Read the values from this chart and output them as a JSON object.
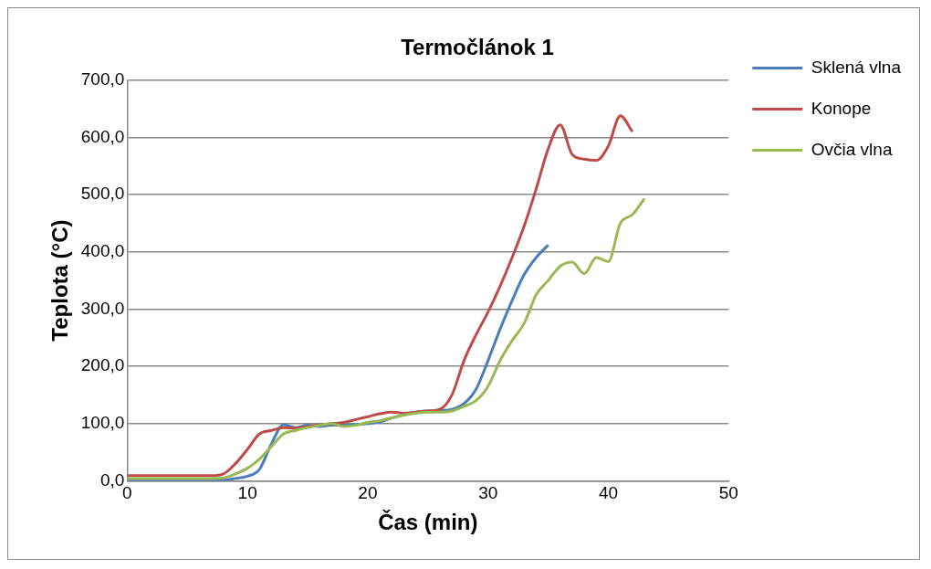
{
  "chart_data": {
    "type": "line",
    "title": "Termočlánok 1",
    "xlabel": "Čas (min)",
    "ylabel": "Teplota (°C)",
    "xlim": [
      0,
      50
    ],
    "xticks": [
      0,
      10,
      20,
      30,
      40,
      50
    ],
    "ylim": [
      0,
      700
    ],
    "yticks": [
      {
        "value": 0,
        "label": "0,0"
      },
      {
        "value": 100,
        "label": "100,0"
      },
      {
        "value": 200,
        "label": "200,0"
      },
      {
        "value": 300,
        "label": "300,0"
      },
      {
        "value": 400,
        "label": "400,0"
      },
      {
        "value": 500,
        "label": "500,0"
      },
      {
        "value": 600,
        "label": "600,0"
      },
      {
        "value": 700,
        "label": "700,0"
      }
    ],
    "grid": "y",
    "legend": "right",
    "marker": "none",
    "line_style": "solid",
    "series": [
      {
        "name": "Sklená vlna",
        "color": "#4a7ebb",
        "x": [
          0,
          1,
          2,
          3,
          4,
          5,
          6,
          7,
          8,
          9,
          10,
          11,
          12,
          13,
          14,
          15,
          16,
          17,
          18,
          19,
          20,
          21,
          22,
          23,
          24,
          25,
          26,
          27,
          28,
          29,
          30,
          31,
          32,
          33,
          34,
          35
        ],
        "values": [
          0,
          0,
          0,
          0,
          0,
          0,
          0,
          0,
          1,
          4,
          8,
          20,
          65,
          98,
          93,
          97,
          95,
          97,
          97,
          98,
          100,
          103,
          110,
          115,
          120,
          122,
          123,
          125,
          135,
          160,
          210,
          265,
          315,
          360,
          390,
          412
        ]
      },
      {
        "name": "Konope",
        "color": "#be4b48",
        "x": [
          0,
          1,
          2,
          3,
          4,
          5,
          6,
          7,
          8,
          9,
          10,
          11,
          12,
          13,
          14,
          15,
          16,
          17,
          18,
          19,
          20,
          21,
          22,
          23,
          24,
          25,
          26,
          27,
          28,
          29,
          30,
          31,
          32,
          33,
          34,
          35,
          36,
          37,
          38,
          39,
          40,
          41,
          42
        ],
        "values": [
          9,
          9,
          9,
          9,
          9,
          9,
          9,
          9,
          12,
          30,
          55,
          82,
          88,
          93,
          92,
          95,
          98,
          100,
          102,
          107,
          112,
          117,
          120,
          118,
          120,
          122,
          125,
          150,
          210,
          255,
          295,
          340,
          390,
          445,
          510,
          580,
          622,
          570,
          562,
          560,
          585,
          638,
          610
        ]
      },
      {
        "name": "Ovčia vlna",
        "color": "#98b954",
        "x": [
          0,
          1,
          2,
          3,
          4,
          5,
          6,
          7,
          8,
          9,
          10,
          11,
          12,
          13,
          14,
          15,
          16,
          17,
          18,
          19,
          20,
          21,
          22,
          23,
          24,
          25,
          26,
          27,
          28,
          29,
          30,
          31,
          32,
          33,
          34,
          35,
          36,
          37,
          38,
          39,
          40,
          41,
          42,
          43
        ],
        "values": [
          4,
          4,
          4,
          4,
          4,
          4,
          4,
          4,
          5,
          12,
          22,
          38,
          60,
          82,
          88,
          93,
          97,
          100,
          95,
          97,
          102,
          105,
          110,
          115,
          118,
          120,
          120,
          122,
          130,
          140,
          165,
          210,
          245,
          275,
          325,
          350,
          375,
          382,
          362,
          390,
          383,
          450,
          465,
          493
        ]
      }
    ]
  }
}
